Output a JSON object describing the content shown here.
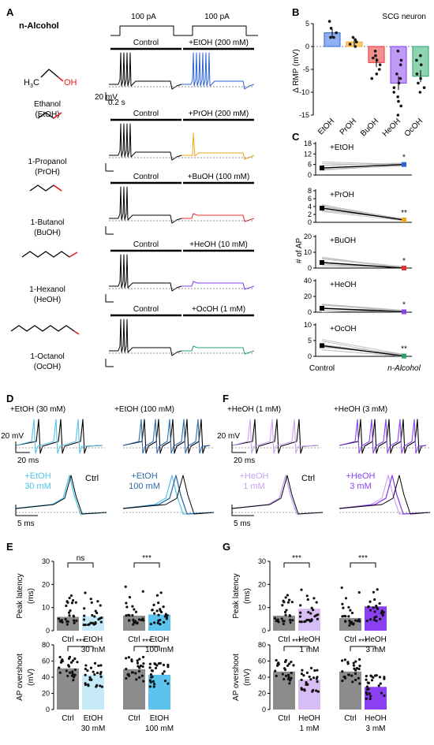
{
  "figure": {
    "panel_letters": [
      "A",
      "B",
      "C",
      "D",
      "E",
      "F",
      "G"
    ],
    "colors": {
      "EtOH": "#2b63d6",
      "PrOH": "#f2a614",
      "BuOH": "#e53232",
      "HeOH": "#8a3ff0",
      "OcOH": "#2aa36a",
      "etoh_light": "#52c4ec",
      "etoh_dark": "#2f6aa8",
      "heoh_light": "#c9a3f3",
      "heoh_dark": "#8a3ff0",
      "ctrl_bar": "#8c8c8c",
      "etoh30_bar": "#c5e9f7",
      "etoh100_bar": "#5cc3ee",
      "heoh1_bar": "#d7bdf4",
      "heoh3_bar": "#8a3ff0"
    }
  },
  "panelA": {
    "header": "n-Alcohol",
    "stim_left": "100 pA",
    "stim_right": "100 pA",
    "scale_v": "20 mV",
    "scale_t": "0.2 s",
    "control_label": "Control",
    "rows": [
      {
        "key": "EtOH",
        "name": "Ethanol",
        "abbr": "(EtOH)",
        "condition": "+EtOH (200 mM)",
        "h3c": "H3C",
        "oh": "OH"
      },
      {
        "key": "PrOH",
        "name": "1-Propanol",
        "abbr": "(PrOH)",
        "condition": "+PrOH (200 mM)"
      },
      {
        "key": "BuOH",
        "name": "1-Butanol",
        "abbr": "(BuOH)",
        "condition": "+BuOH (100 mM)"
      },
      {
        "key": "HeOH",
        "name": "1-Hexanol",
        "abbr": "(HeOH)",
        "condition": "+HeOH (10 mM)"
      },
      {
        "key": "OcOH",
        "name": "1-Octanol",
        "abbr": "(OcOH)",
        "condition": "+OcOH (1 mM)"
      }
    ]
  },
  "chart_data": [
    {
      "panel": "B",
      "type": "bar",
      "annotation": "SCG neuron",
      "ylabel": "Δ RMP (mV)",
      "categories": [
        "EtOH",
        "PrOH",
        "BuOH",
        "HeOH",
        "OcOH"
      ],
      "values": [
        3,
        1,
        -3.5,
        -8,
        -6.5
      ],
      "errors": [
        0.9,
        0.8,
        1.0,
        1.5,
        1.3
      ],
      "ylim": [
        -15,
        5
      ],
      "yticks": [
        "5",
        "0",
        "-5",
        "-10",
        "-15"
      ],
      "points": [
        [
          2,
          5.5,
          3,
          4,
          2
        ],
        [
          2,
          0.5,
          1,
          1.5,
          0
        ],
        [
          -2,
          -4,
          -6,
          -5,
          -3,
          -1,
          -7,
          -2.5
        ],
        [
          -1,
          -4,
          -6,
          -9,
          -12,
          -15,
          -8,
          -10,
          -3,
          -11,
          -7,
          -13
        ],
        [
          -2,
          -4,
          -6,
          -8,
          -10,
          -7,
          -3,
          -9
        ]
      ]
    },
    {
      "panel": "C",
      "type": "line",
      "ylabel": "# of AP",
      "xcategories": [
        "Control",
        "n-Alcohol"
      ],
      "subpanels": [
        {
          "label": "+EtOH",
          "key": "EtOH",
          "yticks": [
            "18",
            "12",
            "6",
            "0"
          ],
          "ylim": [
            0,
            18
          ],
          "mean": [
            4,
            6
          ],
          "sig": "*"
        },
        {
          "label": "+PrOH",
          "key": "PrOH",
          "yticks": [
            "8",
            "6",
            "4",
            "2",
            "0"
          ],
          "ylim": [
            0,
            8
          ],
          "mean": [
            3.6,
            0.6
          ],
          "sig": "**"
        },
        {
          "label": "+BuOH",
          "key": "BuOH",
          "yticks": [
            "20",
            "10",
            "0"
          ],
          "ylim": [
            0,
            20
          ],
          "mean": [
            3.5,
            0
          ],
          "sig": "*"
        },
        {
          "label": "+HeOH",
          "key": "HeOH",
          "yticks": [
            "40",
            "20",
            "0"
          ],
          "ylim": [
            0,
            40
          ],
          "mean": [
            5,
            0.5
          ],
          "sig": "*"
        },
        {
          "label": "+OcOH",
          "key": "OcOH",
          "yticks": [
            "10",
            "5",
            "0"
          ],
          "ylim": [
            0,
            10
          ],
          "mean": [
            3.4,
            0.1
          ],
          "sig": "**"
        }
      ]
    },
    {
      "panel": "E",
      "type": "bar",
      "subpanels": [
        {
          "ylabel": "Peak latency\n(ms)",
          "yticks": [
            "30",
            "20",
            "10",
            "0"
          ],
          "ylim": [
            0,
            30
          ],
          "values": [
            6,
            6.2,
            6.5,
            7
          ],
          "sigs": [
            "ns",
            "***"
          ]
        },
        {
          "ylabel": "AP overshoot\n(mV)",
          "yticks": [
            "80",
            "60",
            "40",
            "20",
            "0"
          ],
          "ylim": [
            0,
            80
          ],
          "values": [
            51,
            43,
            50,
            43
          ],
          "sigs": [
            "***",
            "***"
          ]
        }
      ],
      "categories": [
        "Ctrl",
        "EtOH 30 mM",
        "Ctrl",
        "EtOH 100 mM"
      ]
    },
    {
      "panel": "G",
      "type": "bar",
      "subpanels": [
        {
          "ylabel": "Peak latency\n(ms)",
          "yticks": [
            "30",
            "20",
            "10",
            "0"
          ],
          "ylim": [
            0,
            30
          ],
          "values": [
            6.5,
            9.5,
            5.5,
            10.5
          ],
          "sigs": [
            "***",
            "***"
          ]
        },
        {
          "ylabel": "AP overshoot\n(mV)",
          "yticks": [
            "80",
            "60",
            "40",
            "20",
            "0"
          ],
          "ylim": [
            0,
            80
          ],
          "values": [
            47,
            37,
            47,
            28
          ],
          "sigs": [
            "***",
            "***"
          ]
        }
      ],
      "categories": [
        "Ctrl",
        "HeOH 1 mM",
        "Ctrl",
        "HeOH 3 mM"
      ]
    }
  ],
  "panelD": {
    "top_left": "+EtOH (30 mM)",
    "top_right": "+EtOH (100 mM)",
    "scale_v": "20 mV",
    "scale_t1": "20 ms",
    "scale_t2": "5 ms",
    "bl_a": "+EtOH",
    "bl_b": "30 mM",
    "br_a": "+EtOH",
    "br_b": "100 mM",
    "ctrl": "Ctrl"
  },
  "panelF": {
    "top_left": "+HeOH (1 mM)",
    "top_right": "+HeOH (3 mM)",
    "scale_v": "20 mV",
    "scale_t1": "20 ms",
    "scale_t2": "5 ms",
    "bl_a": "+HeOH",
    "bl_b": "1 mM",
    "br_a": "+HeOH",
    "br_b": "3 mM",
    "ctrl": "Ctrl"
  },
  "xlabels": {
    "ctrl": "Ctrl",
    "etoh": "EtOH",
    "mm30": "30 mM",
    "mm100": "100 mM",
    "heoh": "HeOH",
    "mm1": "1 mM",
    "mm3": "3 mM"
  }
}
